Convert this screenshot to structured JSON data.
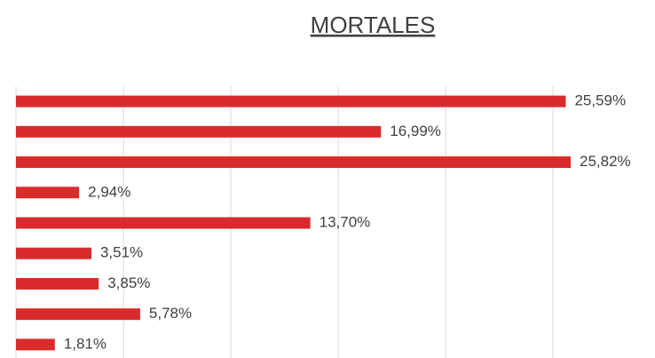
{
  "chart_data": {
    "type": "bar",
    "orientation": "horizontal",
    "title": "MORTALES",
    "categories": [
      null,
      null,
      null,
      null,
      null,
      null,
      null,
      null,
      null
    ],
    "values": [
      25.59,
      16.99,
      25.82,
      2.94,
      13.7,
      3.51,
      3.85,
      5.78,
      1.81
    ],
    "value_labels": [
      "25,59%",
      "16,99%",
      "25,82%",
      "2,94%",
      "13,70%",
      "3,51%",
      "3,85%",
      "5,78%",
      "1,81%"
    ],
    "color": "#d92b2b",
    "xlim": [
      0,
      29
    ],
    "xticks": [
      0,
      5,
      10,
      15,
      20,
      25
    ],
    "grid": true
  }
}
